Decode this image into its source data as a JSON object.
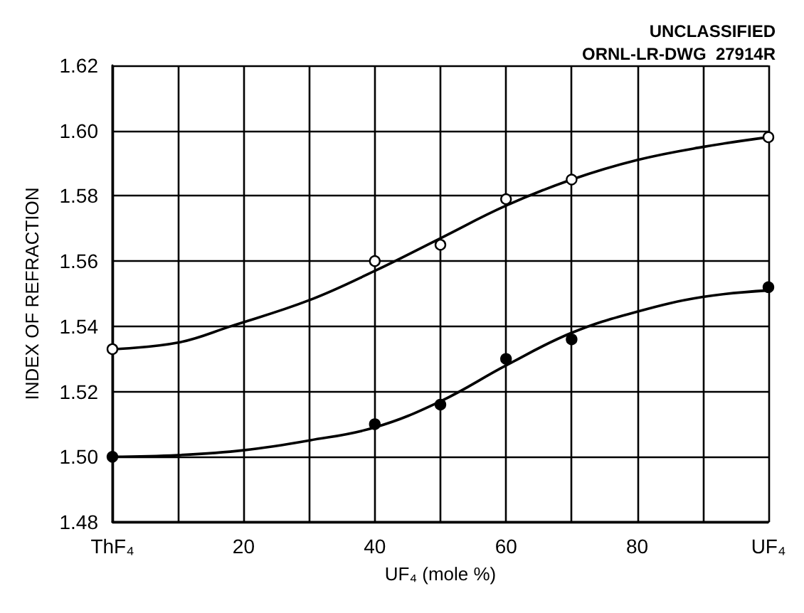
{
  "chart_data": {
    "type": "scatter",
    "xlabel": "UF₄ (mole %)",
    "ylabel": "INDEX OF REFRACTION",
    "annotations": [
      "UNCLASSIFIED",
      "ORNL-LR-DWG  27914R"
    ],
    "xlim": [
      0,
      100
    ],
    "ylim": [
      1.48,
      1.62
    ],
    "xticks": [
      {
        "value": 0,
        "label": "ThF₄"
      },
      {
        "value": 10,
        "label": null
      },
      20,
      {
        "value": 30,
        "label": null
      },
      40,
      {
        "value": 50,
        "label": null
      },
      60,
      {
        "value": 70,
        "label": null
      },
      80,
      {
        "value": 90,
        "label": null
      },
      {
        "value": 100,
        "label": "UF₄"
      }
    ],
    "yticks": [
      {
        "value": 1.48,
        "label": "1.48"
      },
      {
        "value": 1.5,
        "label": "1.50"
      },
      {
        "value": 1.52,
        "label": "1.52"
      },
      {
        "value": 1.54,
        "label": "1.54"
      },
      {
        "value": 1.56,
        "label": "1.56"
      },
      {
        "value": 1.58,
        "label": "1.58"
      },
      {
        "value": 1.6,
        "label": "1.60"
      },
      {
        "value": 1.62,
        "label": "1.62"
      }
    ],
    "grid": true,
    "series": [
      {
        "type": "line",
        "marker": "none",
        "color": "#000000",
        "x": [
          0,
          10,
          18,
          30,
          40,
          50,
          60,
          70,
          80,
          90,
          100
        ],
        "values": [
          1.533,
          1.535,
          1.54,
          1.548,
          1.557,
          1.567,
          1.577,
          1.585,
          1.591,
          1.595,
          1.598
        ]
      },
      {
        "type": "line",
        "marker": "none",
        "color": "#000000",
        "x": [
          0,
          10,
          20,
          30,
          40,
          50,
          60,
          70,
          80,
          90,
          100
        ],
        "values": [
          1.5,
          1.5005,
          1.502,
          1.505,
          1.509,
          1.517,
          1.528,
          1.538,
          1.5445,
          1.549,
          1.551
        ]
      },
      {
        "marker": "circle",
        "color": "#ffffff",
        "x": [
          0,
          40,
          50,
          60,
          70,
          100
        ],
        "values": [
          1.533,
          1.56,
          1.565,
          1.579,
          1.585,
          1.598
        ]
      },
      {
        "marker": "circle",
        "color": "#000000",
        "x": [
          0,
          40,
          50,
          60,
          70,
          100
        ],
        "values": [
          1.5,
          1.51,
          1.516,
          1.53,
          1.536,
          1.552
        ]
      }
    ]
  }
}
